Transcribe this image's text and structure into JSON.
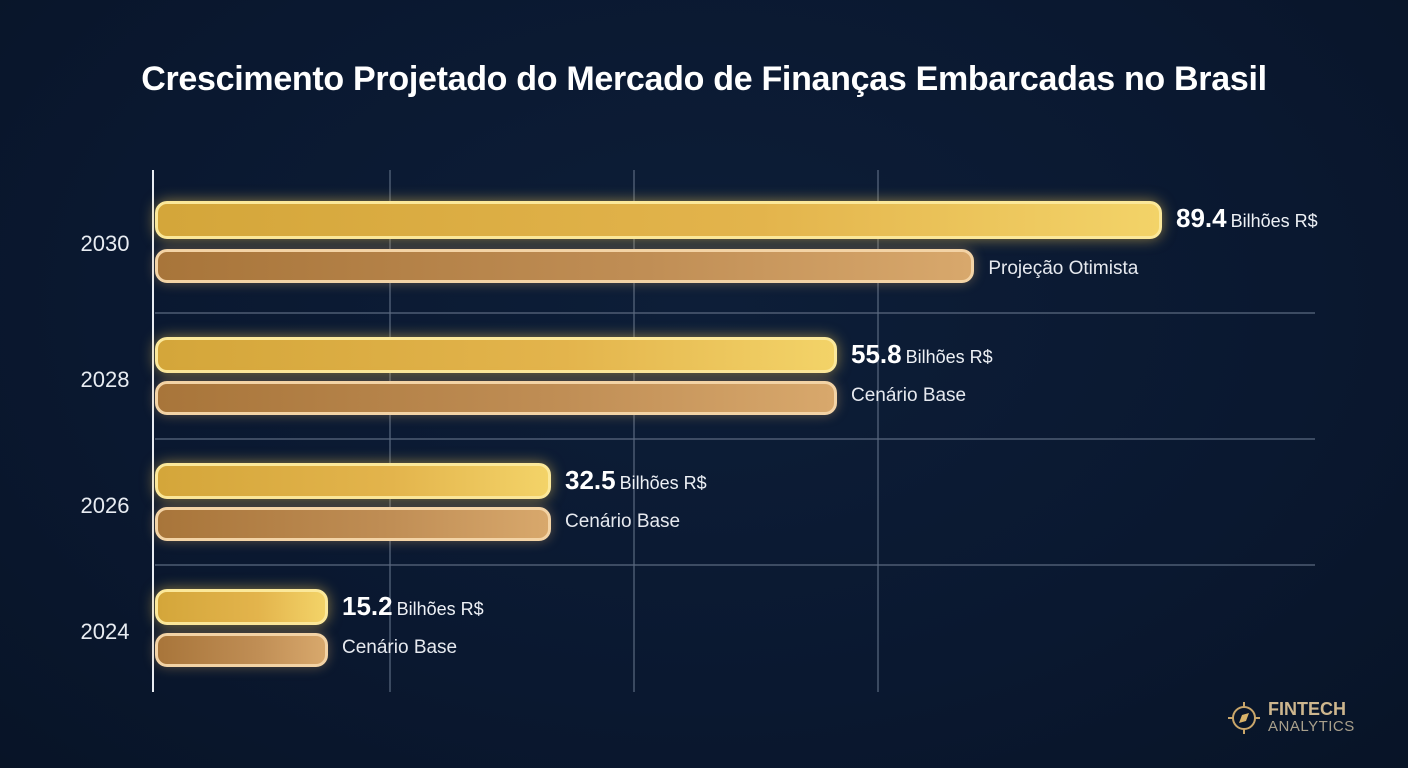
{
  "chart_data": {
    "type": "bar",
    "orientation": "horizontal",
    "title": "Crescimento Projetado do Mercado de Finanças Embarcadas no Brasil",
    "unit": "Bilhões R$",
    "grid": true,
    "categories": [
      "2030",
      "2028",
      "2026",
      "2024"
    ],
    "rows": [
      {
        "year": "2030",
        "value": 89.4,
        "value_text": "89.4",
        "secondary_value": 70,
        "scenario": "Projeção Otimista"
      },
      {
        "year": "2028",
        "value": 55.8,
        "value_text": "55.8",
        "secondary_value": 55.8,
        "scenario": "Cenário Base"
      },
      {
        "year": "2026",
        "value": 32.5,
        "value_text": "32.5",
        "secondary_value": 32.5,
        "scenario": "Cenário Base"
      },
      {
        "year": "2024",
        "value": 15.2,
        "value_text": "15.2",
        "secondary_value": 15.2,
        "scenario": "Cenário Base"
      }
    ],
    "colors": {
      "primary": "#e3b44c",
      "secondary": "#c08e55",
      "background": "#0a1830"
    }
  },
  "logo": {
    "line1": "FINTECH",
    "line2": "ANALYTICS",
    "icon": "compass-icon"
  }
}
